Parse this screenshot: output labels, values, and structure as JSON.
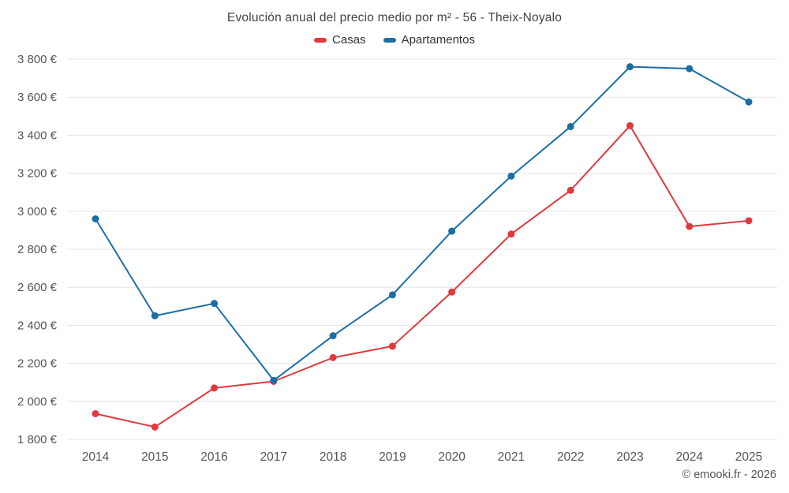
{
  "chart": {
    "title": "Evolución anual del precio medio por m² - 56 - Theix-Noyalo",
    "footer": "© emooki.fr - 2026"
  },
  "chart_data": {
    "type": "line",
    "title": "Evolución anual del precio medio por m² - 56 - Theix-Noyalo",
    "categories": [
      "2014",
      "2015",
      "2016",
      "2017",
      "2018",
      "2019",
      "2020",
      "2021",
      "2022",
      "2023",
      "2024",
      "2025"
    ],
    "series": [
      {
        "name": "Casas",
        "color": "#e0393e",
        "values": [
          1935,
          1865,
          2070,
          2105,
          2230,
          2290,
          2575,
          2880,
          3110,
          3450,
          2920,
          2950
        ]
      },
      {
        "name": "Apartamentos",
        "color": "#1c6ea4",
        "values": [
          2960,
          2450,
          2515,
          2110,
          2345,
          2560,
          2895,
          3185,
          3445,
          3760,
          3750,
          3575
        ]
      }
    ],
    "xlabel": "",
    "ylabel": "",
    "ylim": [
      1800,
      3800
    ],
    "ytick_step": 200,
    "ytick_labels": [
      "1 800 €",
      "2 000 €",
      "2 200 €",
      "2 400 €",
      "2 600 €",
      "2 800 €",
      "3 000 €",
      "3 200 €",
      "3 400 €",
      "3 600 €",
      "3 800 €"
    ],
    "grid": true,
    "legend_position": "top",
    "grid_color": "#e4e4e4",
    "axis_label_color": "#555555"
  }
}
